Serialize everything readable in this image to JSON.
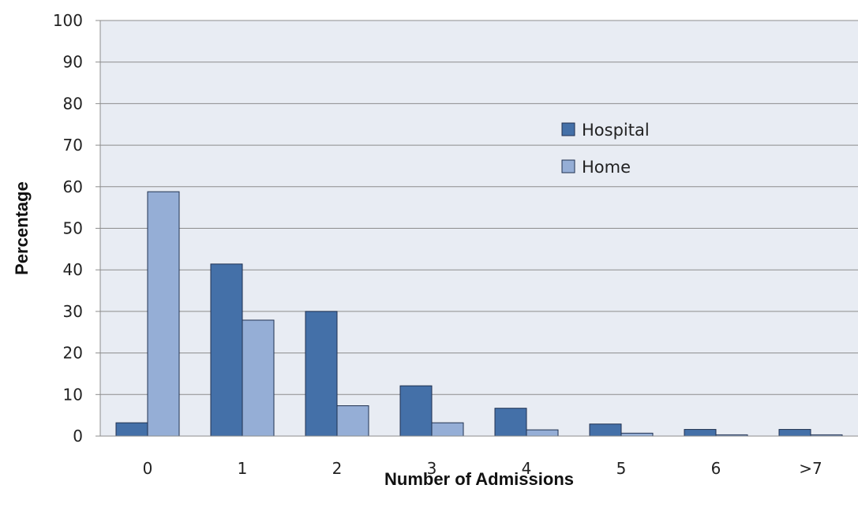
{
  "chart_data": {
    "type": "bar",
    "categories": [
      "0",
      "1",
      "2",
      "3",
      "4",
      "5",
      "6",
      ">7"
    ],
    "series": [
      {
        "name": "Hospital",
        "color": "#4470a8",
        "values": [
          3.2,
          41.4,
          30.0,
          12.1,
          6.7,
          2.9,
          1.6,
          1.6
        ]
      },
      {
        "name": "Home",
        "color": "#95aed6",
        "values": [
          58.8,
          27.9,
          7.3,
          3.2,
          1.5,
          0.7,
          0.3,
          0.3
        ]
      }
    ],
    "xlabel": "Number of Admissions",
    "ylabel": "Percentage",
    "ylim": [
      0,
      100
    ],
    "yticks": [
      0,
      10,
      20,
      30,
      40,
      50,
      60,
      70,
      80,
      90,
      100
    ],
    "grid": true,
    "legend_position": "center-right",
    "plot_background": "#e8ecf3"
  }
}
